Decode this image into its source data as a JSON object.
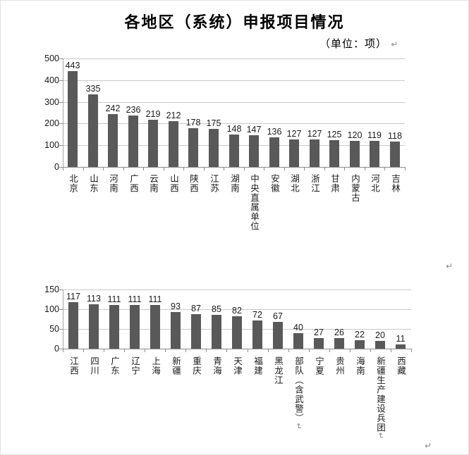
{
  "page": {
    "title": "各地区（系统）申报项目情况",
    "unit_note": "（单位：项）",
    "pilcrow": "↵"
  },
  "chart_data": [
    {
      "type": "bar",
      "title": "各地区（系统）申报项目情况",
      "unit_label": "（单位：项）",
      "categories": [
        "北京",
        "山东",
        "河南",
        "广西",
        "云南",
        "山西",
        "陕西",
        "江苏",
        "湖南",
        "中央直属单位",
        "安徽",
        "湖北",
        "浙江",
        "甘肃",
        "内蒙古",
        "河北",
        "吉林"
      ],
      "values": [
        443,
        335,
        242,
        236,
        219,
        212,
        178,
        175,
        148,
        147,
        136,
        127,
        127,
        125,
        120,
        119,
        118
      ],
      "xlabel": "",
      "ylabel": "",
      "ylim": [
        0,
        500
      ],
      "yticks": [
        0,
        100,
        200,
        300,
        400,
        500
      ],
      "grid": true,
      "legend": "none",
      "data_labels": true,
      "bar_color": "#595959",
      "trailing_pilcrow_indices": []
    },
    {
      "type": "bar",
      "categories": [
        "江西",
        "四川",
        "广东",
        "辽宁",
        "上海",
        "新疆",
        "重庆",
        "青海",
        "天津",
        "福建",
        "黑龙江",
        "部队（含武警）",
        "宁夏",
        "贵州",
        "海南",
        "新疆生产建设兵团",
        "西藏"
      ],
      "values": [
        117,
        113,
        111,
        111,
        111,
        93,
        87,
        85,
        82,
        72,
        67,
        40,
        27,
        26,
        22,
        20,
        11
      ],
      "xlabel": "",
      "ylabel": "",
      "ylim": [
        0,
        150
      ],
      "yticks": [
        0,
        50,
        100,
        150
      ],
      "grid": true,
      "legend": "none",
      "data_labels": true,
      "bar_color": "#595959",
      "trailing_pilcrow_indices": [
        11,
        15
      ]
    }
  ]
}
